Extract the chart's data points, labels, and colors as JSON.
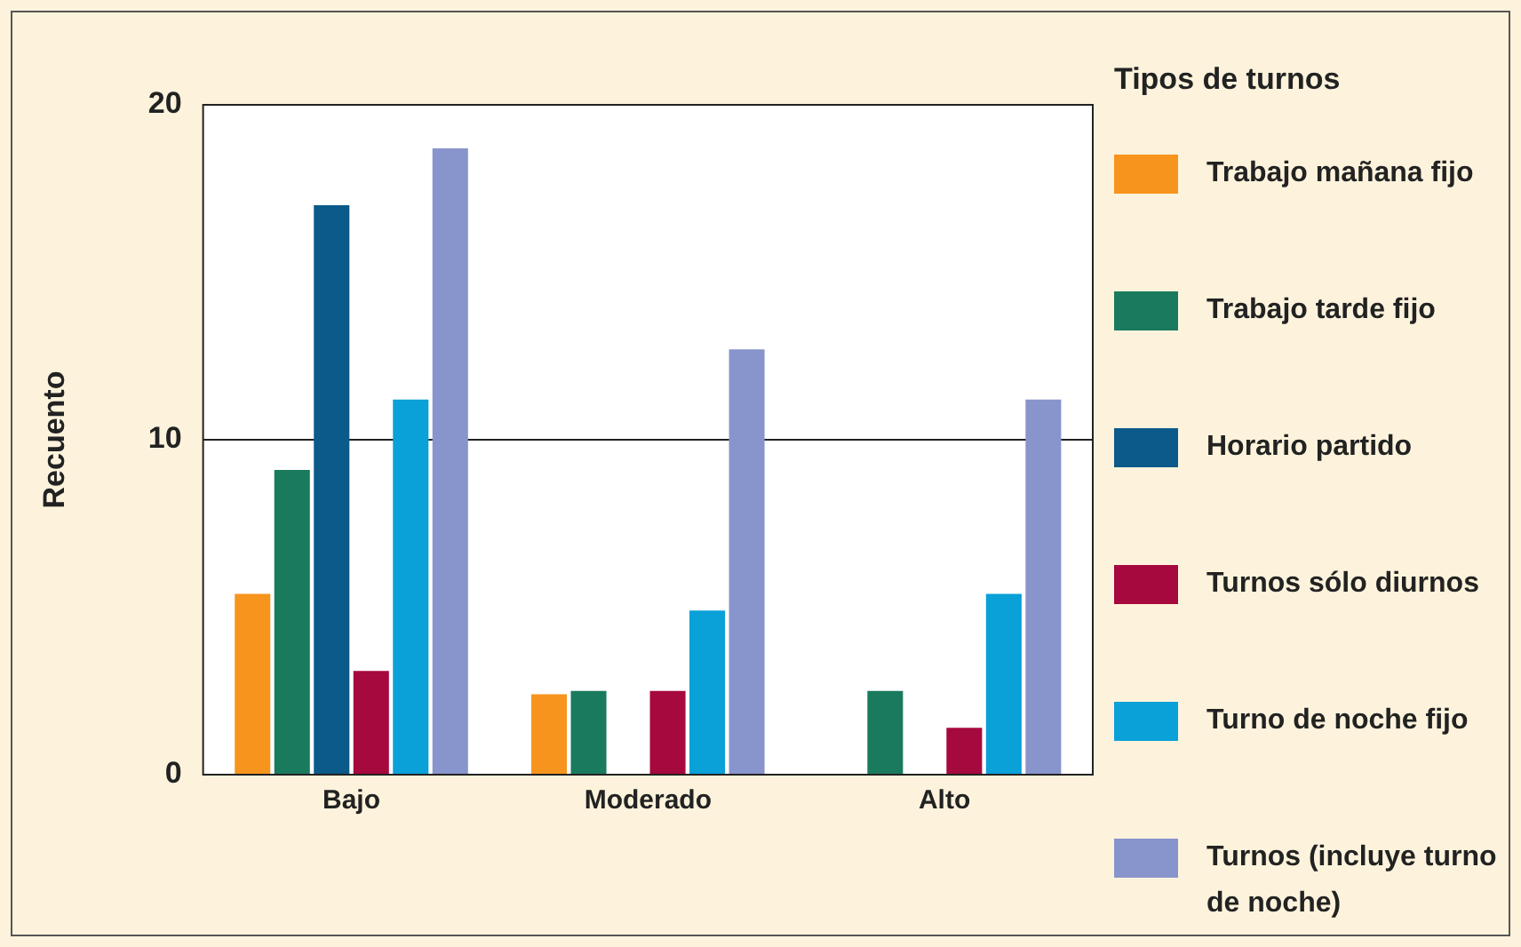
{
  "chart_data": {
    "type": "bar",
    "ylabel": "Recuento",
    "legend_title": "Tipos de turnos",
    "legend": "right",
    "grid": "y",
    "categories": [
      "Bajo",
      "Moderado",
      "Alto"
    ],
    "ylim": [
      0,
      20
    ],
    "yticks": [
      0,
      10,
      20
    ],
    "series": [
      {
        "name": "Trabajo mañana fijo",
        "color": "#f7941d",
        "values": [
          5.4,
          2.4,
          null
        ]
      },
      {
        "name": "Trabajo tarde fijo",
        "color": "#1a7a5e",
        "values": [
          9.1,
          2.5,
          2.5
        ]
      },
      {
        "name": "Horario partido",
        "color": "#0b5a8a",
        "values": [
          17,
          null,
          null
        ]
      },
      {
        "name": "Turnos sólo diurnos",
        "color": "#a6093d",
        "values": [
          3.1,
          2.5,
          1.4
        ]
      },
      {
        "name": "Turno de noche fijo",
        "color": "#0aa0d8",
        "values": [
          11.2,
          4.9,
          5.4
        ]
      },
      {
        "name": "Turnos (incluye turno de noche)",
        "color": "#8894cc",
        "values": [
          18.7,
          12.7,
          11.2
        ]
      }
    ]
  }
}
